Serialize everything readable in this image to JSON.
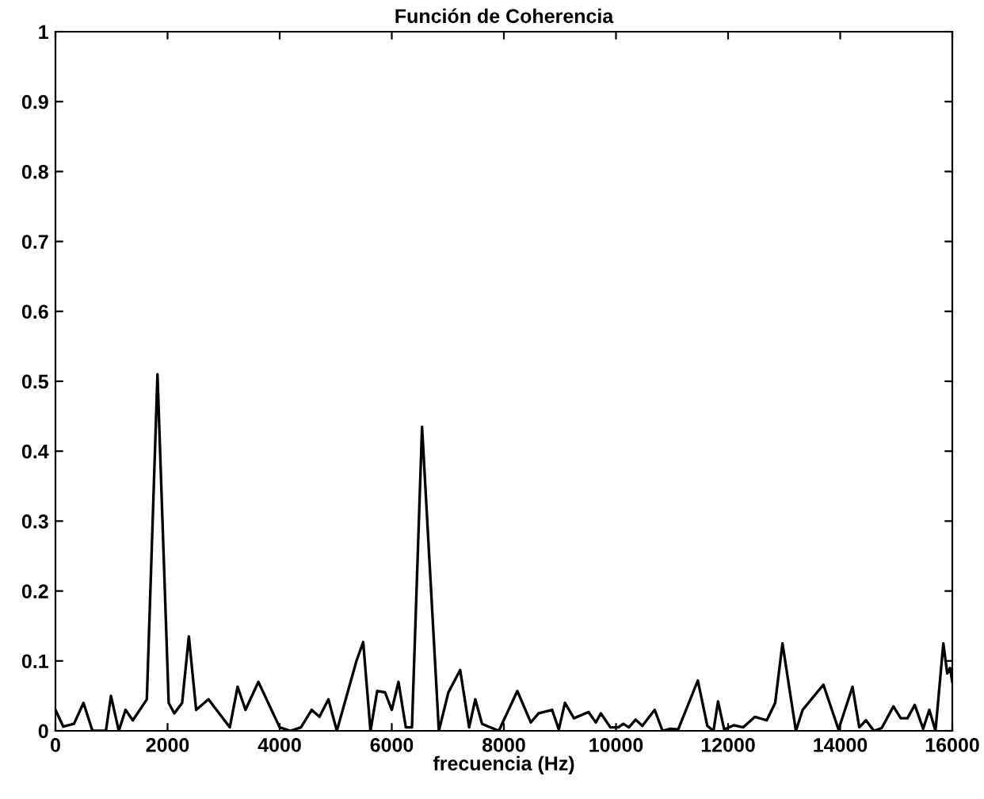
{
  "chart_data": {
    "type": "line",
    "title": "Función de Coherencia",
    "xlabel": "frecuencia (Hz)",
    "xlim": [
      0,
      16000
    ],
    "xticks": [
      0,
      2000,
      4000,
      6000,
      8000,
      10000,
      12000,
      14000,
      16000
    ],
    "ylim": [
      0,
      1
    ],
    "yticks": [
      0,
      0.1,
      0.2,
      0.3,
      0.4,
      0.5,
      0.6,
      0.7,
      0.8,
      0.9,
      1
    ],
    "grid": false,
    "marker": "none",
    "line_style": "solid",
    "series": [
      {
        "color": "#000000",
        "x": [
          0,
          140,
          330,
          500,
          660,
          900,
          990,
          1130,
          1250,
          1380,
          1630,
          1820,
          2020,
          2120,
          2260,
          2380,
          2510,
          2730,
          3110,
          3250,
          3390,
          3620,
          4000,
          4190,
          4380,
          4570,
          4710,
          4870,
          5020,
          5370,
          5490,
          5620,
          5740,
          5880,
          6000,
          6120,
          6250,
          6360,
          6540,
          6840,
          7010,
          7220,
          7380,
          7490,
          7610,
          7910,
          8240,
          8480,
          8620,
          8860,
          8980,
          9090,
          9250,
          9510,
          9640,
          9730,
          9900,
          10040,
          10130,
          10230,
          10350,
          10470,
          10690,
          10830,
          10970,
          11110,
          11460,
          11630,
          11740,
          11820,
          11930,
          12100,
          12270,
          12480,
          12690,
          12840,
          12970,
          13210,
          13330,
          13700,
          13970,
          14220,
          14340,
          14460,
          14600,
          14740,
          14950,
          15080,
          15200,
          15330,
          15480,
          15590,
          15700,
          15840,
          15910,
          15960,
          16000
        ],
        "values": [
          0.03,
          0.006,
          0.01,
          0.04,
          0.0,
          0.0,
          0.05,
          0.0,
          0.03,
          0.015,
          0.045,
          0.51,
          0.04,
          0.025,
          0.04,
          0.135,
          0.03,
          0.045,
          0.005,
          0.063,
          0.03,
          0.07,
          0.005,
          0.0,
          0.005,
          0.03,
          0.02,
          0.045,
          0.0,
          0.1,
          0.127,
          0.0,
          0.057,
          0.055,
          0.03,
          0.07,
          0.005,
          0.005,
          0.435,
          0.0,
          0.055,
          0.087,
          0.005,
          0.045,
          0.01,
          0.0,
          0.057,
          0.012,
          0.025,
          0.03,
          0.002,
          0.04,
          0.018,
          0.027,
          0.012,
          0.025,
          0.005,
          0.005,
          0.01,
          0.005,
          0.016,
          0.007,
          0.03,
          0.0,
          0.003,
          0.002,
          0.072,
          0.007,
          0.0,
          0.042,
          0.002,
          0.008,
          0.005,
          0.02,
          0.015,
          0.04,
          0.125,
          0.0,
          0.03,
          0.066,
          0.002,
          0.063,
          0.005,
          0.015,
          0.0,
          0.004,
          0.035,
          0.018,
          0.018,
          0.037,
          0.003,
          0.03,
          0.0,
          0.125,
          0.082,
          0.09,
          0.07
        ]
      }
    ]
  }
}
